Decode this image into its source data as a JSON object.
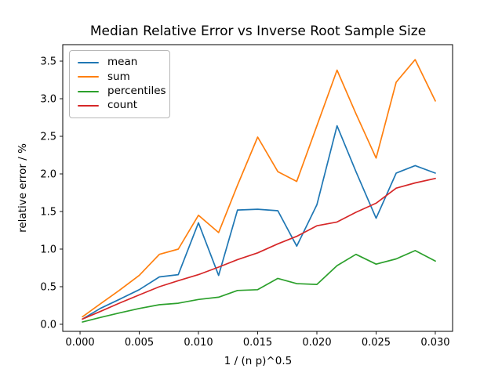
{
  "figure": {
    "background": "#ffffff",
    "frame_color": "#000000"
  },
  "chart_data": {
    "type": "line",
    "title": "Median Relative Error vs Inverse Root Sample Size",
    "xlabel": "1 / (n p)^0.5",
    "ylabel": "relative error / %",
    "grid": false,
    "legend_position": "upper-left",
    "xlim": [
      -0.00146,
      0.03146
    ],
    "ylim": [
      -0.094,
      3.719
    ],
    "x_ticks": [
      0.0,
      0.005,
      0.01,
      0.015,
      0.02,
      0.025,
      0.03
    ],
    "x_tick_labels": [
      "0.000",
      "0.005",
      "0.010",
      "0.015",
      "0.020",
      "0.025",
      "0.030"
    ],
    "y_ticks": [
      0.0,
      0.5,
      1.0,
      1.5,
      2.0,
      2.5,
      3.0,
      3.5
    ],
    "y_tick_labels": [
      "0.0",
      "0.5",
      "1.0",
      "1.5",
      "2.0",
      "2.5",
      "3.0",
      "3.5"
    ],
    "x": [
      0.0002,
      0.0017,
      0.0033,
      0.005,
      0.0067,
      0.0083,
      0.01,
      0.0117,
      0.0133,
      0.015,
      0.0167,
      0.0183,
      0.02,
      0.0217,
      0.0233,
      0.025,
      0.0267,
      0.0283,
      0.03
    ],
    "series": [
      {
        "name": "mean",
        "color": "#1f77b4",
        "values": [
          0.07,
          0.21,
          0.33,
          0.46,
          0.63,
          0.66,
          1.35,
          0.65,
          1.52,
          1.53,
          1.51,
          1.04,
          1.59,
          2.64,
          2.03,
          1.41,
          2.01,
          2.11,
          2.01
        ]
      },
      {
        "name": "sum",
        "color": "#ff7f0e",
        "values": [
          0.1,
          0.27,
          0.45,
          0.65,
          0.93,
          1.0,
          1.45,
          1.22,
          1.85,
          2.49,
          2.03,
          1.9,
          2.64,
          3.38,
          2.8,
          2.21,
          3.22,
          3.52,
          2.97
        ]
      },
      {
        "name": "percentiles",
        "color": "#2ca02c",
        "values": [
          0.03,
          0.09,
          0.15,
          0.21,
          0.26,
          0.28,
          0.33,
          0.36,
          0.45,
          0.46,
          0.61,
          0.54,
          0.53,
          0.78,
          0.93,
          0.8,
          0.87,
          0.98,
          0.84
        ]
      },
      {
        "name": "count",
        "color": "#d62728",
        "values": [
          0.07,
          0.17,
          0.28,
          0.39,
          0.5,
          0.58,
          0.66,
          0.76,
          0.86,
          0.95,
          1.07,
          1.17,
          1.31,
          1.36,
          1.49,
          1.61,
          1.81,
          1.88,
          1.94
        ]
      }
    ]
  }
}
